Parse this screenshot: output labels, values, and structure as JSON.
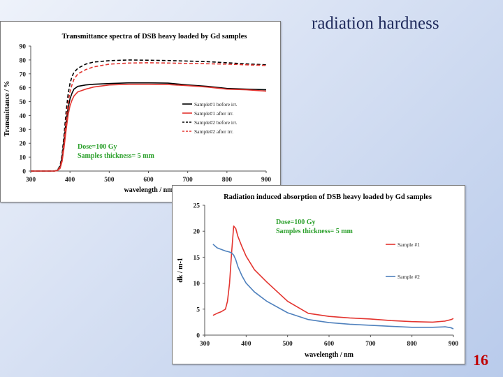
{
  "slide": {
    "title": "radiation hardness",
    "page_number": "16"
  },
  "chart_data": [
    {
      "type": "line",
      "title": "Transmittance spectra of DSB heavy loaded by Gd samples",
      "xlabel": "wavelength / nm",
      "ylabel": "Transmittance / %",
      "xlim": [
        300,
        900
      ],
      "ylim": [
        0,
        90
      ],
      "xticks": [
        300,
        400,
        500,
        600,
        700,
        800,
        900
      ],
      "yticks": [
        0,
        10,
        20,
        30,
        40,
        50,
        60,
        70,
        80,
        90
      ],
      "annotation": [
        "Dose=100 Gy",
        "Samples thickness= 5 mm"
      ],
      "annotation_color": "#2ca02c",
      "series": [
        {
          "name": "Sample#1 before irr.",
          "color": "#000000",
          "dash": "solid",
          "x": [
            300,
            360,
            368,
            375,
            380,
            385,
            390,
            395,
            400,
            405,
            410,
            420,
            440,
            460,
            500,
            550,
            600,
            650,
            700,
            750,
            800,
            850,
            900
          ],
          "y": [
            0,
            0,
            0.5,
            3,
            10,
            22,
            35,
            45,
            52,
            56,
            59,
            61,
            62,
            62.5,
            63,
            63.5,
            63.5,
            63.3,
            62,
            61,
            59.5,
            59,
            58.5
          ]
        },
        {
          "name": "Sample#1 after irr.",
          "color": "#e3342f",
          "dash": "solid",
          "x": [
            300,
            360,
            368,
            375,
            380,
            385,
            390,
            395,
            400,
            405,
            410,
            420,
            440,
            460,
            500,
            550,
            600,
            650,
            700,
            750,
            800,
            850,
            900
          ],
          "y": [
            0,
            0,
            0.3,
            2,
            7,
            17,
            29,
            40,
            47,
            51,
            54,
            57,
            59,
            60.5,
            62,
            62.5,
            62.5,
            62.3,
            61.5,
            60.5,
            59,
            58.5,
            57.5
          ]
        },
        {
          "name": "Sample#2 before irr.",
          "color": "#000000",
          "dash": "5,3",
          "x": [
            300,
            360,
            368,
            375,
            380,
            385,
            390,
            395,
            400,
            405,
            410,
            420,
            440,
            460,
            500,
            550,
            600,
            650,
            700,
            750,
            800,
            850,
            900
          ],
          "y": [
            0,
            0,
            0.5,
            4,
            12,
            26,
            42,
            55,
            63,
            68,
            71,
            74,
            77,
            78.5,
            79.5,
            80,
            79.8,
            79.6,
            79.2,
            78.8,
            78,
            77.2,
            76.5
          ]
        },
        {
          "name": "Sample#2 after irr.",
          "color": "#e3342f",
          "dash": "5,3",
          "x": [
            300,
            360,
            368,
            375,
            380,
            385,
            390,
            395,
            400,
            405,
            410,
            420,
            440,
            460,
            500,
            550,
            600,
            650,
            700,
            750,
            800,
            850,
            900
          ],
          "y": [
            0,
            0,
            0.3,
            3,
            9,
            21,
            36,
            49,
            57,
            62,
            66,
            70,
            73,
            75,
            77,
            77.8,
            78,
            77.8,
            77.5,
            77.3,
            77,
            76.5,
            76
          ]
        }
      ]
    },
    {
      "type": "line",
      "title": "Radiation induced absorption of DSB heavy loaded by Gd samples",
      "xlabel": "wavelength / nm",
      "ylabel": "dk / m-1",
      "xlim": [
        300,
        900
      ],
      "ylim": [
        0,
        25
      ],
      "xticks": [
        300,
        400,
        500,
        600,
        700,
        800,
        900
      ],
      "yticks": [
        0,
        5,
        10,
        15,
        20,
        25
      ],
      "annotation": [
        "Dose=100 Gy",
        "Samples thickness= 5 mm"
      ],
      "annotation_color": "#2ca02c",
      "series": [
        {
          "name": "Sample #1",
          "color": "#e3342f",
          "x": [
            320,
            330,
            340,
            350,
            355,
            360,
            365,
            370,
            375,
            380,
            390,
            400,
            420,
            450,
            500,
            550,
            600,
            650,
            700,
            750,
            800,
            850,
            880,
            895,
            900
          ],
          "y": [
            3.8,
            4.2,
            4.5,
            5,
            6.5,
            10,
            16,
            21,
            20.5,
            19,
            17,
            15.2,
            12.6,
            10.2,
            6.5,
            4.2,
            3.6,
            3.3,
            3.1,
            2.8,
            2.6,
            2.5,
            2.7,
            3,
            3.2
          ]
        },
        {
          "name": "Sample #2",
          "color": "#4f81bd",
          "x": [
            320,
            330,
            340,
            350,
            360,
            365,
            370,
            375,
            380,
            390,
            400,
            420,
            450,
            500,
            550,
            600,
            650,
            700,
            750,
            800,
            850,
            880,
            895,
            900
          ],
          "y": [
            17.5,
            16.8,
            16.5,
            16.2,
            16,
            15.8,
            15.4,
            14.5,
            13.2,
            11.4,
            10,
            8.3,
            6.5,
            4.3,
            3,
            2.4,
            2.1,
            1.9,
            1.7,
            1.5,
            1.5,
            1.6,
            1.4,
            1.2
          ]
        }
      ]
    }
  ]
}
